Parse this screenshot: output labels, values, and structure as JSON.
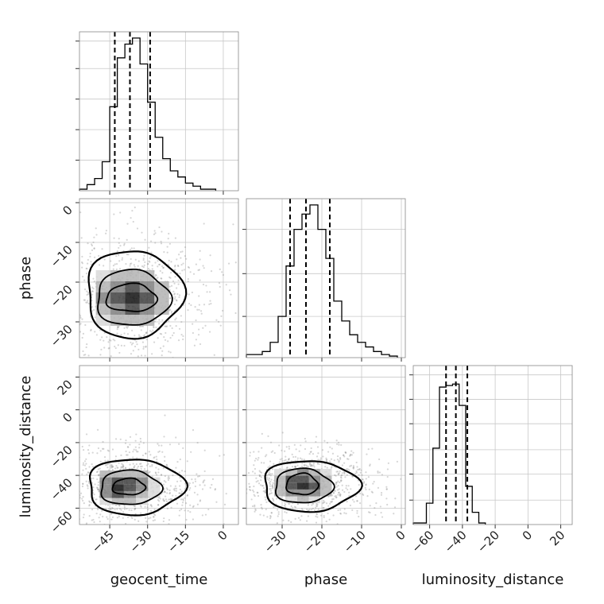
{
  "chart_data": {
    "type": "corner",
    "parameters": [
      "geocent_time",
      "phase",
      "luminosity_distance"
    ],
    "grid": true,
    "diagonal": [
      {
        "parameter": "geocent_time",
        "xlim": [
          -57,
          6
        ],
        "ticks": [
          -45,
          -30,
          -15,
          0
        ],
        "tick_labels": [
          "−45",
          "−30",
          "−15",
          "0"
        ],
        "y_ticks": [
          0.2,
          0.4,
          0.6,
          0.8,
          0.98
        ],
        "bin_edges": [
          -57,
          -54,
          -51,
          -48,
          -45,
          -42,
          -39,
          -36,
          -33,
          -30,
          -27,
          -24,
          -21,
          -18,
          -15,
          -12,
          -9,
          -6,
          -3
        ],
        "counts": [
          0.01,
          0.04,
          0.08,
          0.19,
          0.55,
          0.87,
          0.96,
          1.0,
          0.83,
          0.58,
          0.35,
          0.21,
          0.13,
          0.09,
          0.05,
          0.03,
          0.01,
          0.01
        ],
        "quantiles": [
          -43,
          -37,
          -29
        ]
      },
      {
        "parameter": "phase",
        "xlim": [
          -39,
          1
        ],
        "ticks": [
          -30,
          -20,
          -10,
          0
        ],
        "tick_labels": [
          "−30",
          "−20",
          "−10",
          "0"
        ],
        "y_ticks": [
          0.27,
          0.55,
          0.84
        ],
        "bin_edges": [
          -39,
          -37,
          -35,
          -33,
          -31,
          -29,
          -27,
          -25,
          -23,
          -21,
          -19,
          -17,
          -15,
          -13,
          -11,
          -9,
          -7,
          -5,
          -3,
          -1
        ],
        "counts": [
          0.02,
          0.02,
          0.04,
          0.1,
          0.27,
          0.6,
          0.84,
          0.94,
          1.0,
          0.84,
          0.65,
          0.37,
          0.24,
          0.15,
          0.1,
          0.07,
          0.04,
          0.02,
          0.01
        ],
        "quantiles": [
          -28,
          -24,
          -18
        ]
      },
      {
        "parameter": "luminosity_distance",
        "xlim": [
          -70,
          27
        ],
        "ticks": [
          -60,
          -40,
          -20,
          0,
          20
        ],
        "tick_labels": [
          "−60",
          "−40",
          "−20",
          "0",
          "20"
        ],
        "y_ticks": [
          0.16,
          0.33,
          0.49,
          0.66,
          0.82,
          0.98
        ],
        "bin_edges": [
          -70,
          -66,
          -62,
          -58,
          -54,
          -50,
          -46,
          -42,
          -38,
          -34,
          -30,
          -26
        ],
        "counts": [
          0.01,
          0.01,
          0.14,
          0.5,
          0.9,
          0.91,
          0.92,
          0.78,
          0.25,
          0.08,
          0.01
        ],
        "quantiles": [
          -50,
          -44,
          -37
        ]
      }
    ],
    "pairs": [
      {
        "x_param": "geocent_time",
        "y_param": "phase",
        "xlim": [
          -57,
          6
        ],
        "ylim": [
          -39,
          1
        ],
        "y_ticks": [
          0,
          -10,
          -20,
          -30
        ],
        "y_tick_labels": [
          "0",
          "−10",
          "−20",
          "−30"
        ],
        "peak": [
          -37,
          -24
        ],
        "contour_levels": [
          {
            "x": [
              -46.5,
              -26.5
            ],
            "y": [
              -27.5,
              -20.5
            ]
          },
          {
            "x": [
              -50.5,
              -21.5
            ],
            "y": [
              -31,
              -17
            ]
          },
          {
            "x": [
              -54.5,
              -16.5
            ],
            "y": [
              -34,
              -12
            ]
          }
        ]
      },
      {
        "x_param": "geocent_time",
        "y_param": "luminosity_distance",
        "xlim": [
          -57,
          6
        ],
        "ylim": [
          -70,
          27
        ],
        "y_ticks": [
          20,
          0,
          -20,
          -40,
          -60
        ],
        "y_tick_labels": [
          "20",
          "0",
          "−20",
          "−40",
          "−60"
        ],
        "peak": [
          -40,
          -47
        ],
        "contour_levels": [
          {
            "x": [
              -44,
              -31
            ],
            "y": [
              -52,
              -42
            ]
          },
          {
            "x": [
              -49,
              -25
            ],
            "y": [
              -58,
              -37
            ]
          },
          {
            "x": [
              -54,
              -16
            ],
            "y": [
              -64,
              -30
            ]
          }
        ]
      },
      {
        "x_param": "phase",
        "y_param": "luminosity_distance",
        "xlim": [
          -39,
          1
        ],
        "ylim": [
          -70,
          27
        ],
        "peak": [
          -25,
          -45
        ],
        "contour_levels": [
          {
            "x": [
              -29,
              -21
            ],
            "y": [
              -52,
              -39
            ]
          },
          {
            "x": [
              -32,
              -17.5
            ],
            "y": [
              -57,
              -36
            ]
          },
          {
            "x": [
              -35,
              -11
            ],
            "y": [
              -62,
              -31
            ]
          }
        ]
      }
    ],
    "xlabels": [
      "geocent_time",
      "phase",
      "luminosity_distance"
    ],
    "ylabels": [
      "phase",
      "luminosity_distance"
    ]
  }
}
